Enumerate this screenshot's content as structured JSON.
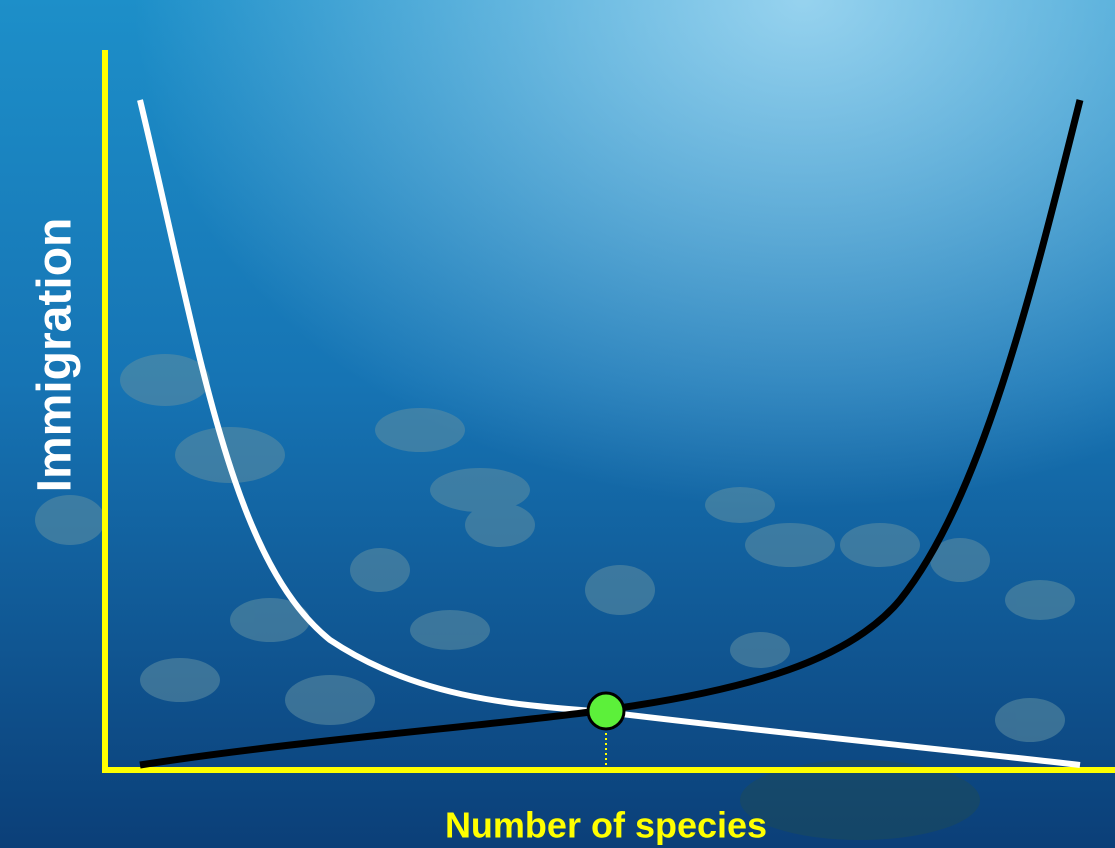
{
  "axis_labels": {
    "y": "Immigration",
    "x": "Number of species"
  }
}
